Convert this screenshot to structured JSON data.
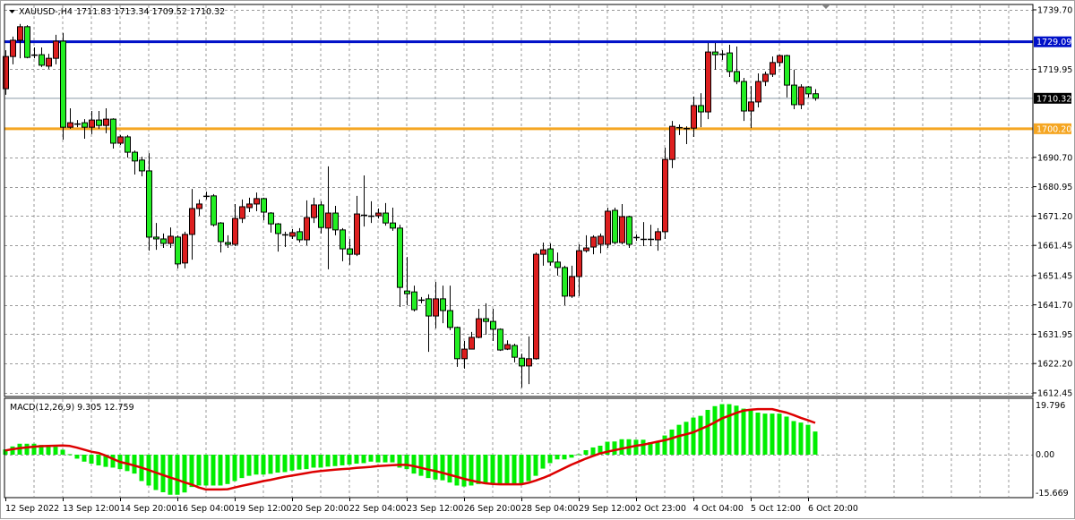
{
  "chart_header": {
    "symbol_timeframe": "XAUUSD-,H4",
    "ohlc": "1711.83 1713.34 1709.52 1710.32",
    "dropdown_icon": "triangle-down-icon"
  },
  "macd_header": {
    "label": "MACD(12,26,9) 9.305 12.759"
  },
  "colors": {
    "bull_candle": "#dd1f1f",
    "bear_candle": "#22ee22",
    "macd_histogram": "#00ee00",
    "signal_line": "#dd0000",
    "resistance_line": "#0010c8",
    "support_line": "#f5a623",
    "bid_line": "#8a9aa8",
    "grid": "#9a9a9a"
  },
  "price_axis": {
    "ticks": [
      "1739.70",
      "1719.95",
      "1690.70",
      "1680.95",
      "1671.20",
      "1661.45",
      "1651.45",
      "1641.70",
      "1631.95",
      "1622.20",
      "1612.45"
    ],
    "range": [
      1612.45,
      1739.7
    ]
  },
  "levels": {
    "resistance": {
      "price": 1729.09,
      "label": "1729.09"
    },
    "support": {
      "price": 1700.2,
      "label": "1700.20"
    },
    "bid": {
      "price": 1710.32,
      "label": "1710.32"
    }
  },
  "macd_axis": {
    "ticks": [
      "19.796",
      "0.00",
      "-15.669"
    ],
    "range": [
      -15.669,
      19.796
    ]
  },
  "time_axis": {
    "labels": [
      {
        "index": 0,
        "text": "12 Sep 2022"
      },
      {
        "index": 8,
        "text": "13 Sep 12:00"
      },
      {
        "index": 16,
        "text": "14 Sep 20:00"
      },
      {
        "index": 24,
        "text": "16 Sep 04:00"
      },
      {
        "index": 32,
        "text": "19 Sep 12:00"
      },
      {
        "index": 40,
        "text": "20 Sep 20:00"
      },
      {
        "index": 48,
        "text": "22 Sep 04:00"
      },
      {
        "index": 56,
        "text": "23 Sep 12:00"
      },
      {
        "index": 64,
        "text": "26 Sep 20:00"
      },
      {
        "index": 72,
        "text": "28 Sep 04:00"
      },
      {
        "index": 80,
        "text": "29 Sep 12:00"
      },
      {
        "index": 88,
        "text": "2 Oct 23:00"
      },
      {
        "index": 96,
        "text": "4 Oct 04:00"
      },
      {
        "index": 104,
        "text": "5 Oct 12:00"
      },
      {
        "index": 112,
        "text": "6 Oct 20:00"
      }
    ]
  },
  "chart_data": [
    {
      "type": "candlestick",
      "title": "XAUUSD-,H4",
      "ylim": [
        1612.45,
        1739.7
      ],
      "grid": true,
      "ohlc_order": [
        "open",
        "high",
        "low",
        "close"
      ],
      "candles": [
        [
          1713.5,
          1726.3,
          1711.5,
          1724.2
        ],
        [
          1724.2,
          1730.8,
          1721.6,
          1729.6
        ],
        [
          1729.6,
          1735.0,
          1723.6,
          1734.1
        ],
        [
          1734.1,
          1734.6,
          1723.6,
          1723.9
        ],
        [
          1724.5,
          1727.2,
          1723.6,
          1724.8
        ],
        [
          1724.8,
          1727.2,
          1720.7,
          1721.3
        ],
        [
          1721.0,
          1725.1,
          1720.1,
          1723.6
        ],
        [
          1723.6,
          1731.4,
          1721.6,
          1729.3
        ],
        [
          1729.3,
          1732.0,
          1696.6,
          1700.7
        ],
        [
          1700.7,
          1707.0,
          1700.2,
          1702.2
        ],
        [
          1701.9,
          1703.1,
          1700.7,
          1701.9
        ],
        [
          1702.2,
          1703.4,
          1696.9,
          1700.7
        ],
        [
          1700.7,
          1706.1,
          1698.4,
          1703.1
        ],
        [
          1703.1,
          1706.1,
          1700.2,
          1701.3
        ],
        [
          1701.3,
          1707.0,
          1698.7,
          1703.4
        ],
        [
          1703.4,
          1703.7,
          1693.6,
          1695.4
        ],
        [
          1695.4,
          1698.1,
          1694.8,
          1697.5
        ],
        [
          1697.5,
          1698.1,
          1690.6,
          1692.4
        ],
        [
          1692.4,
          1693.0,
          1685.0,
          1689.5
        ],
        [
          1689.8,
          1690.9,
          1684.4,
          1686.2
        ],
        [
          1686.2,
          1692.1,
          1659.7,
          1664.2
        ],
        [
          1664.2,
          1668.9,
          1660.0,
          1663.6
        ],
        [
          1663.6,
          1665.4,
          1660.6,
          1662.1
        ],
        [
          1662.1,
          1667.4,
          1660.6,
          1664.5
        ],
        [
          1664.2,
          1664.8,
          1653.8,
          1655.3
        ],
        [
          1655.6,
          1666.0,
          1653.8,
          1665.1
        ],
        [
          1665.1,
          1680.2,
          1656.7,
          1673.7
        ],
        [
          1673.7,
          1676.7,
          1671.3,
          1675.2
        ],
        [
          1677.9,
          1679.3,
          1676.7,
          1677.9
        ],
        [
          1677.9,
          1678.5,
          1667.7,
          1668.3
        ],
        [
          1668.9,
          1669.2,
          1659.1,
          1662.7
        ],
        [
          1662.4,
          1664.8,
          1660.6,
          1661.8
        ],
        [
          1661.8,
          1675.2,
          1661.2,
          1670.4
        ],
        [
          1670.4,
          1676.7,
          1668.9,
          1674.3
        ],
        [
          1674.0,
          1677.3,
          1672.5,
          1675.2
        ],
        [
          1675.2,
          1679.0,
          1672.8,
          1677.0
        ],
        [
          1677.0,
          1677.3,
          1669.8,
          1672.5
        ],
        [
          1672.2,
          1672.5,
          1665.7,
          1668.6
        ],
        [
          1668.6,
          1668.9,
          1659.4,
          1665.4
        ],
        [
          1665.1,
          1666.0,
          1660.9,
          1665.1
        ],
        [
          1664.5,
          1666.9,
          1663.6,
          1665.7
        ],
        [
          1666.0,
          1667.2,
          1662.4,
          1663.3
        ],
        [
          1663.3,
          1676.4,
          1661.5,
          1670.7
        ],
        [
          1670.7,
          1677.3,
          1668.9,
          1674.9
        ],
        [
          1674.9,
          1676.1,
          1665.4,
          1667.4
        ],
        [
          1667.2,
          1687.7,
          1653.5,
          1672.2
        ],
        [
          1672.2,
          1674.6,
          1664.8,
          1666.6
        ],
        [
          1666.6,
          1667.2,
          1656.2,
          1660.3
        ],
        [
          1660.3,
          1663.6,
          1655.0,
          1658.5
        ],
        [
          1658.5,
          1677.9,
          1657.9,
          1671.9
        ],
        [
          1671.6,
          1684.7,
          1667.7,
          1671.3
        ],
        [
          1671.3,
          1676.1,
          1668.9,
          1671.3
        ],
        [
          1671.3,
          1673.7,
          1670.4,
          1672.2
        ],
        [
          1672.2,
          1675.5,
          1668.0,
          1668.9
        ],
        [
          1668.9,
          1674.0,
          1666.3,
          1667.2
        ],
        [
          1667.2,
          1668.3,
          1641.0,
          1647.5
        ],
        [
          1646.3,
          1657.6,
          1641.6,
          1645.4
        ],
        [
          1646.0,
          1648.1,
          1639.5,
          1640.1
        ],
        [
          1643.4,
          1644.3,
          1642.2,
          1643.4
        ],
        [
          1643.7,
          1645.2,
          1626.1,
          1638.0
        ],
        [
          1638.0,
          1649.3,
          1633.9,
          1643.7
        ],
        [
          1643.7,
          1648.1,
          1635.6,
          1639.8
        ],
        [
          1639.8,
          1648.1,
          1633.3,
          1634.2
        ],
        [
          1634.2,
          1634.5,
          1621.1,
          1623.8
        ],
        [
          1623.8,
          1629.7,
          1620.5,
          1627.0
        ],
        [
          1627.0,
          1632.7,
          1627.0,
          1630.9
        ],
        [
          1630.9,
          1640.4,
          1630.6,
          1637.1
        ],
        [
          1637.1,
          1642.2,
          1631.8,
          1636.2
        ],
        [
          1636.2,
          1640.4,
          1629.7,
          1633.6
        ],
        [
          1633.6,
          1633.9,
          1626.4,
          1626.7
        ],
        [
          1627.0,
          1629.9,
          1626.7,
          1628.5
        ],
        [
          1628.2,
          1628.8,
          1622.6,
          1624.3
        ],
        [
          1624.0,
          1625.5,
          1614.2,
          1621.4
        ],
        [
          1621.4,
          1631.2,
          1615.4,
          1623.8
        ],
        [
          1623.8,
          1659.1,
          1623.5,
          1658.5
        ],
        [
          1658.5,
          1662.4,
          1654.7,
          1660.0
        ],
        [
          1660.3,
          1662.1,
          1654.7,
          1655.9
        ],
        [
          1655.9,
          1659.1,
          1651.4,
          1654.1
        ],
        [
          1654.1,
          1654.7,
          1641.6,
          1644.6
        ],
        [
          1644.6,
          1654.7,
          1644.0,
          1651.1
        ],
        [
          1651.1,
          1661.8,
          1644.6,
          1659.7
        ],
        [
          1659.7,
          1664.8,
          1659.1,
          1660.6
        ],
        [
          1660.9,
          1664.8,
          1658.5,
          1664.2
        ],
        [
          1661.8,
          1665.4,
          1658.8,
          1664.5
        ],
        [
          1661.8,
          1674.0,
          1660.6,
          1672.8
        ],
        [
          1673.1,
          1674.0,
          1661.8,
          1662.4
        ],
        [
          1662.4,
          1675.2,
          1661.8,
          1671.0
        ],
        [
          1671.0,
          1671.3,
          1660.6,
          1661.8
        ],
        [
          1664.2,
          1665.1,
          1663.0,
          1664.2
        ],
        [
          1663.6,
          1669.2,
          1661.2,
          1663.6
        ],
        [
          1663.6,
          1668.3,
          1661.2,
          1663.6
        ],
        [
          1663.3,
          1667.2,
          1659.7,
          1666.0
        ],
        [
          1666.0,
          1693.9,
          1663.6,
          1690.0
        ],
        [
          1690.0,
          1702.8,
          1687.1,
          1701.0
        ],
        [
          1700.7,
          1701.6,
          1698.1,
          1700.7
        ],
        [
          1700.4,
          1701.0,
          1695.1,
          1700.4
        ],
        [
          1700.4,
          1710.9,
          1697.5,
          1707.9
        ],
        [
          1707.9,
          1712.0,
          1700.7,
          1705.8
        ],
        [
          1705.8,
          1728.7,
          1703.4,
          1725.7
        ],
        [
          1725.7,
          1728.7,
          1719.8,
          1724.8
        ],
        [
          1725.1,
          1726.3,
          1723.1,
          1725.1
        ],
        [
          1725.4,
          1728.1,
          1717.4,
          1719.2
        ],
        [
          1719.2,
          1727.5,
          1715.0,
          1715.9
        ],
        [
          1715.9,
          1717.1,
          1702.8,
          1706.1
        ],
        [
          1706.1,
          1714.4,
          1700.4,
          1709.1
        ],
        [
          1709.1,
          1718.6,
          1707.3,
          1715.9
        ],
        [
          1715.9,
          1719.2,
          1714.4,
          1718.3
        ],
        [
          1718.3,
          1724.2,
          1717.4,
          1722.2
        ],
        [
          1722.2,
          1724.8,
          1720.9,
          1724.5
        ],
        [
          1724.5,
          1724.8,
          1710.6,
          1714.7
        ],
        [
          1714.7,
          1719.8,
          1706.7,
          1708.2
        ],
        [
          1708.2,
          1715.0,
          1706.7,
          1714.1
        ],
        [
          1714.1,
          1714.4,
          1710.6,
          1711.8
        ],
        [
          1711.83,
          1713.34,
          1709.52,
          1710.32
        ]
      ]
    },
    {
      "type": "bar",
      "title": "MACD(12,26,9)",
      "ylim": [
        -15.669,
        19.796
      ],
      "histogram": [
        2.1,
        3.3,
        4.4,
        4.4,
        4.4,
        3.9,
        3.3,
        3.2,
        2.0,
        0.2,
        -1.6,
        -2.8,
        -3.6,
        -4.3,
        -4.9,
        -5.2,
        -5.8,
        -6.6,
        -7.6,
        -10.6,
        -12.4,
        -14.2,
        -15.1,
        -16.1,
        -16.1,
        -15.2,
        -13.0,
        -12.4,
        -12.4,
        -12.4,
        -12.4,
        -11.8,
        -10.6,
        -9.4,
        -8.5,
        -8.0,
        -8.0,
        -7.7,
        -7.2,
        -7.0,
        -6.4,
        -6.0,
        -5.8,
        -5.2,
        -5.2,
        -4.8,
        -4.6,
        -4.3,
        -4.0,
        -3.6,
        -3.4,
        -2.8,
        -3.1,
        -3.1,
        -3.1,
        -5.2,
        -5.8,
        -7.6,
        -8.5,
        -9.4,
        -10.0,
        -10.3,
        -11.2,
        -12.4,
        -12.8,
        -12.4,
        -11.8,
        -11.6,
        -11.6,
        -11.6,
        -11.6,
        -11.6,
        -11.6,
        -10.6,
        -8.5,
        -5.6,
        -3.4,
        -1.9,
        -1.9,
        -1.2,
        0.2,
        1.8,
        2.9,
        3.6,
        5.2,
        5.3,
        6.2,
        6.2,
        6.0,
        6.0,
        5.0,
        5.2,
        7.7,
        10.1,
        12.0,
        13.2,
        14.9,
        15.6,
        18.0,
        19.5,
        20.3,
        20.3,
        19.7,
        18.5,
        18.3,
        16.9,
        16.5,
        16.5,
        16.5,
        15.3,
        13.5,
        12.9,
        12.0,
        9.305
      ],
      "signal": [
        1.7,
        2.2,
        2.6,
        2.9,
        3.2,
        3.4,
        3.5,
        3.6,
        3.7,
        3.5,
        2.8,
        2.0,
        1.2,
        0.7,
        -0.4,
        -1.7,
        -2.9,
        -3.6,
        -4.4,
        -5.2,
        -6.2,
        -7.2,
        -8.2,
        -9.2,
        -10.1,
        -11.1,
        -12.0,
        -13.2,
        -14.0,
        -14.0,
        -14.0,
        -13.9,
        -13.2,
        -12.5,
        -11.9,
        -11.3,
        -10.6,
        -10.1,
        -9.5,
        -8.9,
        -8.4,
        -7.9,
        -7.4,
        -6.9,
        -6.6,
        -6.3,
        -6.0,
        -5.8,
        -5.6,
        -5.3,
        -5.1,
        -4.9,
        -4.6,
        -4.4,
        -4.2,
        -4.1,
        -4.1,
        -4.6,
        -5.3,
        -6.0,
        -6.6,
        -7.3,
        -8.1,
        -8.9,
        -9.7,
        -10.4,
        -11.0,
        -11.5,
        -11.8,
        -11.9,
        -11.9,
        -11.9,
        -11.9,
        -11.3,
        -10.4,
        -9.4,
        -8.2,
        -6.8,
        -5.4,
        -4.0,
        -2.8,
        -1.6,
        -0.5,
        0.5,
        1.2,
        1.8,
        2.4,
        3.0,
        3.6,
        4.0,
        4.6,
        5.2,
        5.8,
        6.6,
        7.5,
        8.2,
        9.0,
        10.3,
        11.5,
        13.0,
        14.6,
        15.7,
        16.8,
        17.7,
        18.1,
        18.3,
        18.3,
        18.3,
        17.6,
        16.9,
        15.9,
        14.8,
        13.8,
        12.759
      ]
    }
  ]
}
